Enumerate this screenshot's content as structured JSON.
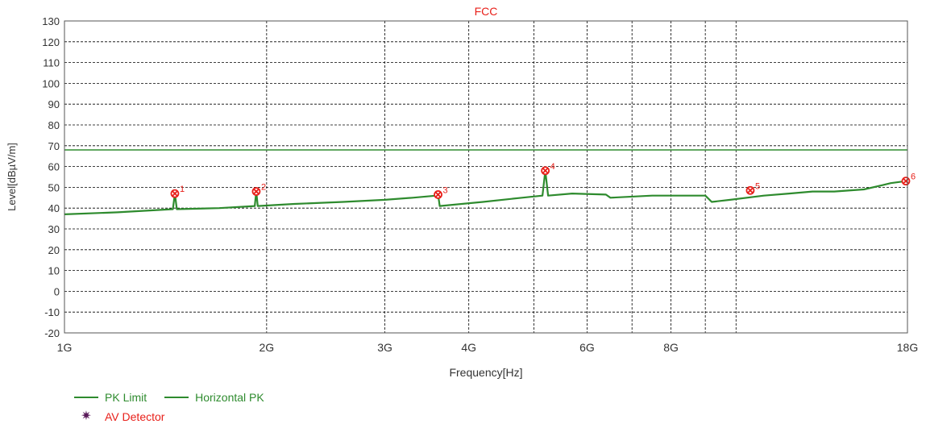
{
  "chart_data": {
    "type": "line",
    "title": "FCC",
    "xlabel": "Frequency[Hz]",
    "ylabel": "Level[dBµV/m]",
    "x_scale": "log",
    "xlim": [
      1000000000,
      18000000000
    ],
    "ylim": [
      -20,
      130
    ],
    "grid": true,
    "x_ticks": [
      {
        "value": 1000000000,
        "label": "1G"
      },
      {
        "value": 2000000000,
        "label": "2G"
      },
      {
        "value": 3000000000,
        "label": "3G"
      },
      {
        "value": 4000000000,
        "label": "4G"
      },
      {
        "value": 6000000000,
        "label": "6G"
      },
      {
        "value": 8000000000,
        "label": "8G"
      },
      {
        "value": 18000000000,
        "label": "18G"
      }
    ],
    "x_minor_gridlines": [
      5000000000,
      7000000000,
      9000000000,
      10000000000
    ],
    "y_ticks": [
      -20,
      -10,
      0,
      10,
      20,
      30,
      40,
      50,
      60,
      70,
      80,
      90,
      100,
      110,
      120,
      130
    ],
    "series": [
      {
        "name": "PK Limit",
        "color": "#2e8b2e",
        "x": [
          1000000000,
          18000000000
        ],
        "y": [
          68,
          68
        ]
      },
      {
        "name": "Horizontal PK",
        "color": "#2e8b2e",
        "x": [
          1000000000,
          1200000000,
          1450000000,
          1460000000,
          1470000000,
          1700000000,
          1920000000,
          1930000000,
          1940000000,
          2200000000,
          2600000000,
          3000000000,
          3300000000,
          3580000000,
          3600000000,
          3620000000,
          4200000000,
          4800000000,
          5150000000,
          5200000000,
          5250000000,
          5700000000,
          6400000000,
          6500000000,
          7500000000,
          8000000000,
          9000000000,
          9200000000,
          9800000000,
          11000000000,
          12000000000,
          13000000000,
          14000000000,
          15500000000,
          16500000000,
          17000000000,
          17900000000,
          18000000000
        ],
        "y": [
          37,
          38,
          39.5,
          47,
          39.5,
          40,
          41,
          48,
          41,
          42,
          43,
          44,
          45,
          46,
          46.5,
          41,
          43,
          45,
          46,
          58,
          46,
          47,
          46.5,
          45,
          46,
          46,
          46,
          43,
          44,
          46,
          47,
          48,
          48,
          49,
          51,
          52,
          53,
          51
        ]
      }
    ],
    "markers": [
      {
        "label": "1",
        "x": 1460000000,
        "y": 47
      },
      {
        "label": "2",
        "x": 1930000000,
        "y": 48
      },
      {
        "label": "3",
        "x": 3600000000,
        "y": 46.5
      },
      {
        "label": "4",
        "x": 5200000000,
        "y": 58
      },
      {
        "label": "5",
        "x": 10500000000,
        "y": 48.5
      },
      {
        "label": "6",
        "x": 17900000000,
        "y": 53
      }
    ],
    "legend": [
      {
        "label": "PK Limit",
        "kind": "line",
        "color": "#2e8b2e"
      },
      {
        "label": "Horizontal PK",
        "kind": "line",
        "color": "#2e8b2e"
      },
      {
        "label": "AV Detector",
        "kind": "star",
        "color": "#5a1a5a",
        "text_color": "#e8201a"
      }
    ],
    "colors": {
      "title": "#e8201a",
      "marker": "#e8201a",
      "grid": "#000000",
      "axis_text": "#333333"
    }
  }
}
